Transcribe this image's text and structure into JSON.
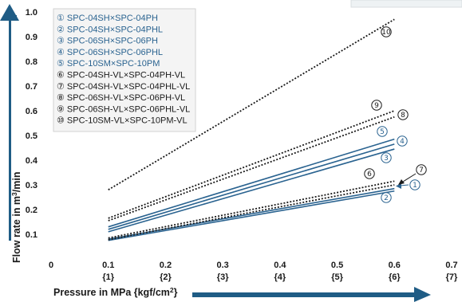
{
  "chart_data": {
    "type": "line",
    "xlabel": "Pressure in MPa {kgf/cm²}",
    "ylabel": "Flow rate in m³/min",
    "xlim": [
      0,
      0.7
    ],
    "ylim": [
      0,
      1.0
    ],
    "x_ticks": [
      "0",
      "0.1",
      "0.2",
      "0.3",
      "0.4",
      "0.5",
      "0.6",
      "0.7"
    ],
    "x_subticks": [
      "",
      "{1}",
      "{2}",
      "{3}",
      "{4}",
      "{5}",
      "{6}",
      "{7}"
    ],
    "y_ticks": [
      "0.1",
      "0.2",
      "0.3",
      "0.4",
      "0.5",
      "0.6",
      "0.7",
      "0.8",
      "0.9",
      "1.0"
    ],
    "series": [
      {
        "marker": "①",
        "name": "SPC-04SH×SPC-04PH",
        "style": "solid",
        "color": "#2a6390",
        "x": [
          0.1,
          0.6
        ],
        "y": [
          0.08,
          0.285
        ]
      },
      {
        "marker": "②",
        "name": "SPC-04SH×SPC-04PHL",
        "style": "solid",
        "color": "#2a6390",
        "x": [
          0.1,
          0.6
        ],
        "y": [
          0.075,
          0.275
        ]
      },
      {
        "marker": "③",
        "name": "SPC-06SH×SPC-06PH",
        "style": "solid",
        "color": "#2a6390",
        "x": [
          0.1,
          0.6
        ],
        "y": [
          0.11,
          0.445
        ]
      },
      {
        "marker": "④",
        "name": "SPC-06SH×SPC-06PHL",
        "style": "solid",
        "color": "#2a6390",
        "x": [
          0.1,
          0.6
        ],
        "y": [
          0.12,
          0.465
        ]
      },
      {
        "marker": "⑤",
        "name": "SPC-10SM×SPC-10PM",
        "style": "solid",
        "color": "#2a6390",
        "x": [
          0.1,
          0.6
        ],
        "y": [
          0.13,
          0.485
        ]
      },
      {
        "marker": "⑥",
        "name": "SPC-04SH-VL×SPC-04PH-VL",
        "style": "dotted",
        "color": "#1a1a1a",
        "x": [
          0.1,
          0.6
        ],
        "y": [
          0.085,
          0.315
        ]
      },
      {
        "marker": "⑦",
        "name": "SPC-04SH-VL×SPC-04PHL-VL",
        "style": "dotted",
        "color": "#1a1a1a",
        "x": [
          0.1,
          0.6
        ],
        "y": [
          0.078,
          0.3
        ]
      },
      {
        "marker": "⑧",
        "name": "SPC-06SH-VL×SPC-06PH-VL",
        "style": "dotted",
        "color": "#1a1a1a",
        "x": [
          0.1,
          0.6
        ],
        "y": [
          0.155,
          0.575
        ]
      },
      {
        "marker": "⑨",
        "name": "SPC-06SH-VL×SPC-06PHL-VL",
        "style": "dotted",
        "color": "#1a1a1a",
        "x": [
          0.1,
          0.6
        ],
        "y": [
          0.165,
          0.6
        ]
      },
      {
        "marker": "⑩",
        "name": "SPC-10SM-VL×SPC-10PM-VL",
        "style": "dotted",
        "color": "#1a1a1a",
        "x": [
          0.1,
          0.6
        ],
        "y": [
          0.28,
          0.97
        ]
      }
    ],
    "legend": "top-left",
    "grid": false,
    "colors": {
      "blue": "#2a6390",
      "dark": "#1a1a1a",
      "arrow": "#1f5c85",
      "legend_bg": "#f4f4f4",
      "legend_border": "#d2d2d2"
    }
  }
}
